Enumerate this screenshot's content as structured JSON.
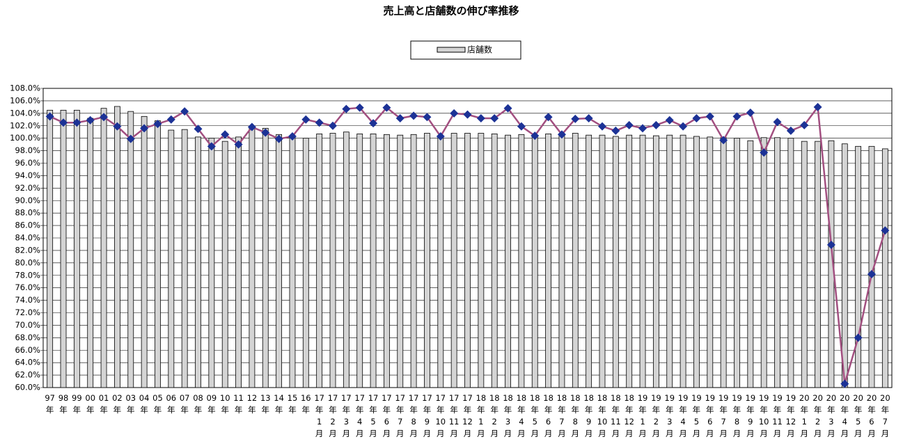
{
  "chart_data": {
    "type": "bar_line",
    "title": "売上高と店舗数の伸び率推移",
    "categories": [
      "97年",
      "98年",
      "99年",
      "00年",
      "01年",
      "02年",
      "03年",
      "04年",
      "05年",
      "06年",
      "07年",
      "08年",
      "09年",
      "10年",
      "11年",
      "12年",
      "13年",
      "14年",
      "15年",
      "16年",
      "17年1月",
      "17年2月",
      "17年3月",
      "17年4月",
      "17年5月",
      "17年6月",
      "17年7月",
      "17年8月",
      "17年9月",
      "17年10月",
      "17年11月",
      "17年12月",
      "18年1月",
      "18年2月",
      "18年3月",
      "18年4月",
      "18年5月",
      "18年6月",
      "18年7月",
      "18年8月",
      "18年9月",
      "18年10月",
      "18年11月",
      "18年12月",
      "19年1月",
      "19年2月",
      "19年3月",
      "19年4月",
      "19年5月",
      "19年6月",
      "19年7月",
      "19年8月",
      "19年9月",
      "19年10月",
      "19年11月",
      "19年12月",
      "20年1月",
      "20年2月",
      "20年3月",
      "20年4月",
      "20年5月",
      "20年6月",
      "20年7月"
    ],
    "series": [
      {
        "name": "店舗数",
        "kind": "bar",
        "color": "#d4d4d4",
        "values": [
          104.5,
          104.5,
          104.5,
          103.2,
          104.8,
          105.1,
          104.3,
          103.5,
          102.8,
          101.3,
          101.4,
          100.2,
          100.0,
          99.5,
          100.2,
          101.9,
          101.6,
          100.6,
          100.3,
          100.0,
          100.7,
          100.8,
          101.0,
          100.7,
          100.7,
          100.6,
          100.5,
          100.6,
          100.8,
          100.4,
          100.8,
          100.8,
          100.8,
          100.7,
          100.5,
          100.6,
          100.5,
          100.7,
          100.5,
          100.8,
          100.5,
          100.5,
          100.3,
          100.5,
          100.5,
          100.4,
          100.5,
          100.5,
          100.3,
          100.2,
          100.1,
          100.0,
          99.6,
          100.1,
          100.1,
          100.0,
          99.5,
          99.5,
          99.6,
          99.1,
          98.7,
          98.7,
          98.3
        ]
      },
      {
        "kind": "line",
        "color": "#a24f80",
        "marker_color": "#1c3296",
        "values": [
          103.5,
          102.5,
          102.5,
          102.9,
          103.4,
          101.9,
          99.9,
          101.6,
          102.3,
          103.0,
          104.3,
          101.5,
          98.7,
          100.6,
          99.0,
          101.8,
          100.9,
          99.9,
          100.3,
          103.0,
          102.5,
          102.0,
          104.7,
          104.9,
          102.4,
          104.9,
          103.2,
          103.6,
          103.4,
          100.3,
          104.0,
          103.8,
          103.2,
          103.2,
          104.8,
          101.9,
          100.4,
          103.4,
          100.6,
          103.1,
          103.2,
          101.9,
          101.2,
          102.1,
          101.6,
          102.1,
          102.9,
          101.9,
          103.2,
          103.5,
          99.7,
          103.5,
          104.1,
          97.7,
          102.6,
          101.2,
          102.1,
          105.0,
          82.9,
          60.6,
          68.0,
          78.2,
          85.2
        ]
      }
    ],
    "ylim": [
      60,
      108
    ],
    "yticks": [
      {
        "value": 60,
        "label": "60.0%"
      },
      {
        "value": 62,
        "label": "62.0%"
      },
      {
        "value": 64,
        "label": "64.0%"
      },
      {
        "value": 66,
        "label": "66.0%"
      },
      {
        "value": 68,
        "label": "68.0%"
      },
      {
        "value": 70,
        "label": "70.0%"
      },
      {
        "value": 72,
        "label": "72.0%"
      },
      {
        "value": 74,
        "label": "74.0%"
      },
      {
        "value": 76,
        "label": "76.0%"
      },
      {
        "value": 78,
        "label": "78.0%"
      },
      {
        "value": 80,
        "label": "80.0%"
      },
      {
        "value": 82,
        "label": "82.0%"
      },
      {
        "value": 84,
        "label": "84.0%"
      },
      {
        "value": 86,
        "label": "86.0%"
      },
      {
        "value": 88,
        "label": "88.0%"
      },
      {
        "value": 90,
        "label": "90.0%"
      },
      {
        "value": 92,
        "label": "92.0%"
      },
      {
        "value": 94,
        "label": "94.0%"
      },
      {
        "value": 96,
        "label": "96.0%"
      },
      {
        "value": 98,
        "label": "98.0%"
      },
      {
        "value": 100,
        "label": "100.0%"
      },
      {
        "value": 102,
        "label": "102.0%"
      },
      {
        "value": 104,
        "label": "104.0%"
      },
      {
        "value": 106,
        "label": "106.0%"
      },
      {
        "value": 108,
        "label": "108.0%"
      }
    ],
    "grid": true
  }
}
